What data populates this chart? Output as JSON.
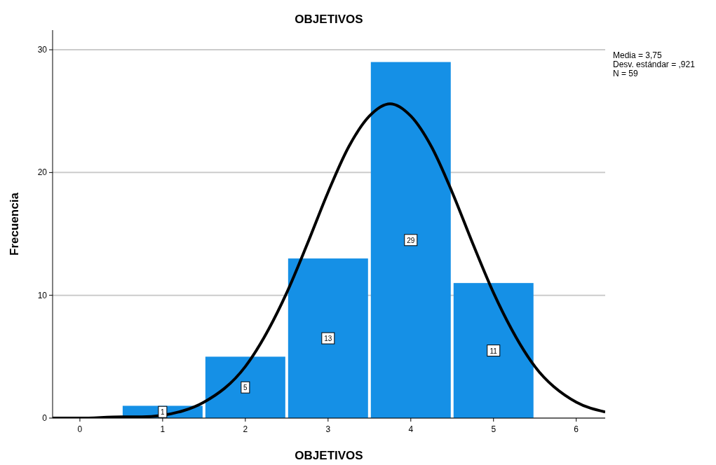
{
  "chart_data": {
    "type": "histogram",
    "title": "OBJETIVOS",
    "xlabel": "OBJETIVOS",
    "ylabel": "Frecuencia",
    "annotations": [
      "Media = 3,75",
      "Desv. estándar = ,921",
      "N = 59"
    ],
    "xlim": [
      -0.33,
      6.35
    ],
    "ylim": [
      0,
      31.6
    ],
    "xticks": [
      0,
      1,
      2,
      3,
      4,
      5,
      6
    ],
    "yticks": [
      0,
      10,
      20,
      30
    ],
    "grid": "y",
    "series": [
      {
        "type": "histogram",
        "data_labels": true,
        "color": "#1590e6",
        "bins": [
          0.5,
          1.5,
          2.5,
          3.5,
          4.5,
          5.5
        ],
        "values": [
          1,
          5,
          13,
          29,
          11
        ]
      },
      {
        "type": "line",
        "color": "#000000",
        "marker": "none",
        "line_style": "solid",
        "x": [
          -0.33,
          0,
          0.5,
          0.75,
          1.25,
          1.5,
          2,
          2.5,
          2.75,
          3,
          3.25,
          3.5,
          3.75,
          4,
          4.25,
          4.5,
          4.75,
          5,
          5.5,
          6,
          6.35
        ],
        "values": [
          0,
          0,
          0.1,
          0.1,
          0.6,
          1.3,
          4.2,
          10.2,
          14.2,
          18.4,
          22.1,
          24.6,
          25.6,
          24.6,
          22.1,
          18.4,
          14.2,
          10.2,
          4.2,
          1.3,
          0.5
        ]
      }
    ]
  }
}
